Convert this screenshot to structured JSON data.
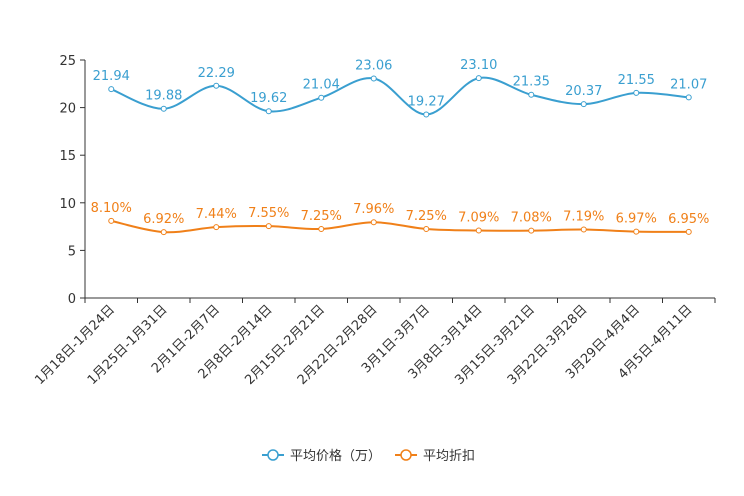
{
  "chart_data": {
    "type": "line",
    "title": "",
    "xlabel": "",
    "ylabel": "",
    "ylim": [
      0,
      25
    ],
    "yticks": [
      0,
      5,
      10,
      15,
      20,
      25
    ],
    "categories": [
      "1月18日-1月24日",
      "1月25日-1月31日",
      "2月1日-2月7日",
      "2月8日-2月14日",
      "2月15日-2月21日",
      "2月22日-2月28日",
      "3月1日-3月7日",
      "3月8日-3月14日",
      "3月15日-3月21日",
      "3月22日-3月28日",
      "3月29日-4月4日",
      "4月5日-4月11日"
    ],
    "series": [
      {
        "name": "平均价格（万）",
        "color": "#3a9fd0",
        "values": [
          21.94,
          19.88,
          22.29,
          19.62,
          21.04,
          23.06,
          19.27,
          23.1,
          21.35,
          20.37,
          21.55,
          21.07
        ],
        "labels": [
          "21.94",
          "19.88",
          "22.29",
          "19.62",
          "21.04",
          "23.06",
          "19.27",
          "23.10",
          "21.35",
          "20.37",
          "21.55",
          "21.07"
        ]
      },
      {
        "name": "平均折扣",
        "color": "#f08019",
        "values": [
          8.1,
          6.92,
          7.44,
          7.55,
          7.25,
          7.96,
          7.25,
          7.09,
          7.08,
          7.19,
          6.97,
          6.95
        ],
        "labels": [
          "8.10%",
          "6.92%",
          "7.44%",
          "7.55%",
          "7.25%",
          "7.96%",
          "7.25%",
          "7.09%",
          "7.08%",
          "7.19%",
          "6.97%",
          "6.95%"
        ]
      }
    ],
    "legend_position": "bottom-center"
  }
}
